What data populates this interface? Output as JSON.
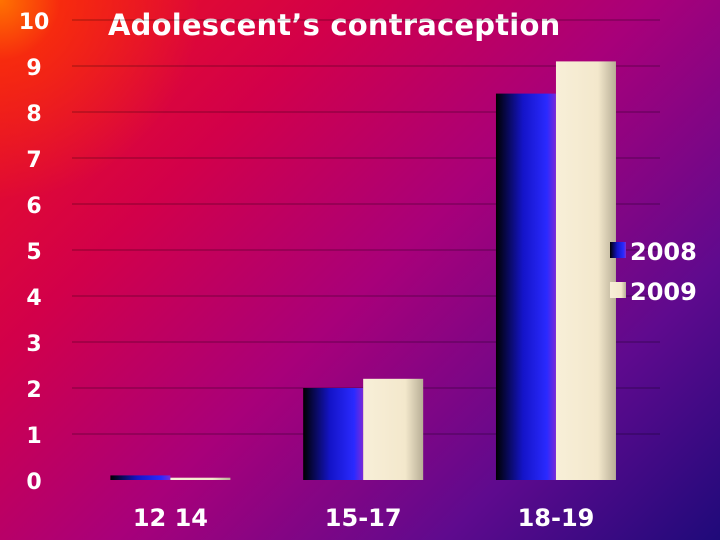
{
  "chart_data": {
    "type": "bar",
    "title": "Adolescent’s contraception",
    "xlabel": "",
    "ylabel": "",
    "categories": [
      "12 14",
      "15-17",
      "18-19"
    ],
    "series": [
      {
        "name": "2008",
        "values": [
          0.1,
          2.0,
          8.4
        ]
      },
      {
        "name": "2009",
        "values": [
          0.05,
          2.2,
          9.1
        ]
      }
    ],
    "ylim": [
      0,
      10
    ],
    "yticks": [
      0,
      1,
      2,
      3,
      4,
      5,
      6,
      7,
      8,
      9,
      10
    ],
    "grid": true,
    "legend": "right",
    "colors": {
      "series_2008": "#1a1acc",
      "series_2009": "#f5ecd2",
      "text": "#ffffff",
      "grid": "#000000"
    }
  }
}
